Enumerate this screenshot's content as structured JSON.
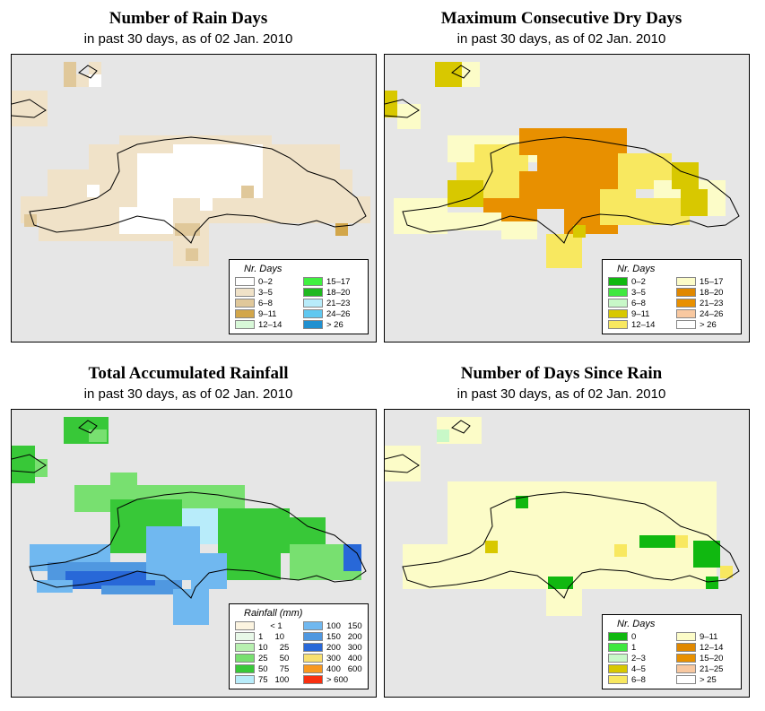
{
  "panels": [
    {
      "title": "Number of Rain Days",
      "subtitle": "in past 30 days, as of  02 Jan. 2010",
      "legend": {
        "title": "Nr. Days",
        "items": [
          {
            "label": "0–2",
            "color": "#ffffff"
          },
          {
            "label": "3–5",
            "color": "#f0e2c8"
          },
          {
            "label": "6–8",
            "color": "#e0c89a"
          },
          {
            "label": "9–11",
            "color": "#d2a64a"
          },
          {
            "label": "12–14",
            "color": "#d8f8d8"
          },
          {
            "label": "15–17",
            "color": "#40f040"
          },
          {
            "label": "18–20",
            "color": "#20b820"
          },
          {
            "label": "21–23",
            "color": "#b8ecfa"
          },
          {
            "label": "24–26",
            "color": "#60c8f0"
          },
          {
            "label": "> 26",
            "color": "#2090d0"
          }
        ]
      }
    },
    {
      "title": "Maximum Consecutive Dry Days",
      "subtitle": "in past 30 days, as of  02 Jan. 2010",
      "legend": {
        "title": "Nr. Days",
        "items": [
          {
            "label": "0–2",
            "color": "#10b810"
          },
          {
            "label": "3–5",
            "color": "#40e840"
          },
          {
            "label": "6–8",
            "color": "#c8f8c8"
          },
          {
            "label": "9–11",
            "color": "#d8c800"
          },
          {
            "label": "12–14",
            "color": "#f8e860"
          },
          {
            "label": "15–17",
            "color": "#fcfcc8"
          },
          {
            "label": "18–20",
            "color": "#e08800"
          },
          {
            "label": "21–23",
            "color": "#e89000"
          },
          {
            "label": "24–26",
            "color": "#f8c8a0"
          },
          {
            "label": "> 26",
            "color": "#ffffff"
          }
        ]
      }
    },
    {
      "title": "Total Accumulated Rainfall",
      "subtitle": "in past 30 days, as of  02 Jan. 2010",
      "legend": {
        "title": "Rainfall (mm)",
        "items": [
          {
            "label": "     < 1",
            "color": "#fcf4e0"
          },
          {
            "label": "1     10",
            "color": "#e8f8e8"
          },
          {
            "label": "10     25",
            "color": "#b8f0b0"
          },
          {
            "label": "25     50",
            "color": "#78e070"
          },
          {
            "label": "50     75",
            "color": "#38c838"
          },
          {
            "label": "75   100",
            "color": "#b8ecfa"
          },
          {
            "label": "100   150",
            "color": "#70b8f0"
          },
          {
            "label": "150   200",
            "color": "#5098e0"
          },
          {
            "label": "200   300",
            "color": "#2868d8"
          },
          {
            "label": "300   400",
            "color": "#f8e070"
          },
          {
            "label": "400   600",
            "color": "#f89820"
          },
          {
            "label": "> 600",
            "color": "#f83010"
          }
        ]
      }
    },
    {
      "title": "Number of Days Since Rain",
      "subtitle": "in past 30 days, as of  02 Jan. 2010",
      "legend": {
        "title": "Nr. Days",
        "items": [
          {
            "label": "0",
            "color": "#10b810"
          },
          {
            "label": "1",
            "color": "#40e840"
          },
          {
            "label": "2–3",
            "color": "#c8f8c8"
          },
          {
            "label": "4–5",
            "color": "#d8c800"
          },
          {
            "label": "6–8",
            "color": "#f8e860"
          },
          {
            "label": "9–11",
            "color": "#fcfcc8"
          },
          {
            "label": "12–14",
            "color": "#e08800"
          },
          {
            "label": "15–20",
            "color": "#e89000"
          },
          {
            "label": "21–25",
            "color": "#f8c8a0"
          },
          {
            "label": "> 25",
            "color": "#ffffff"
          }
        ]
      }
    }
  ]
}
